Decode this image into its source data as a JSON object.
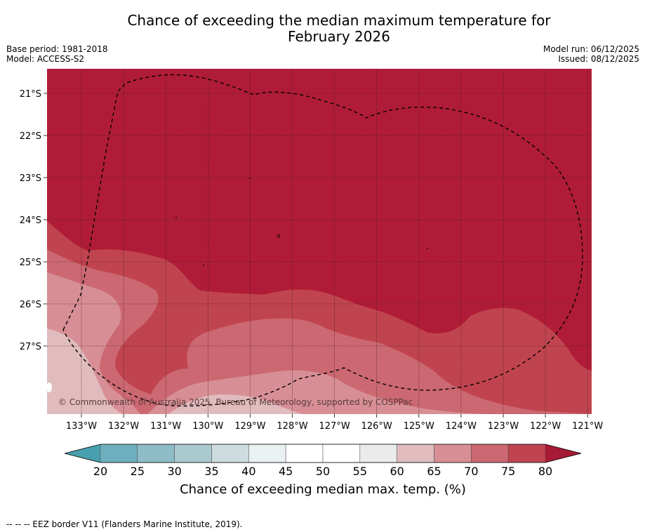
{
  "title": {
    "line1": "Chance of exceeding the median maximum temperature for",
    "line2": "February 2026"
  },
  "meta": {
    "base_period": "Base period: 1981-2018",
    "model": "Model: ACCESS-S2",
    "model_run": "Model run: 06/12/2025",
    "issued": "Issued: 08/12/2025"
  },
  "map": {
    "copyright": "© Commonwealth of Australia 2025, Bureau of Meteorology, supported by COSPPac",
    "lon_labels": [
      "133°W",
      "132°W",
      "131°W",
      "130°W",
      "129°W",
      "128°W",
      "127°W",
      "126°W",
      "125°W",
      "124°W",
      "123°W",
      "122°W",
      "121°W"
    ],
    "lat_labels": [
      "21°S",
      "22°S",
      "23°S",
      "24°S",
      "25°S",
      "26°S",
      "27°S"
    ],
    "colors": {
      "c80": "#b01c37",
      "c75": "#c0444f",
      "c70": "#cc6872",
      "c65": "#d78f95",
      "c60": "#e1bcbf"
    }
  },
  "colorbar": {
    "ticks": [
      "20",
      "25",
      "30",
      "35",
      "40",
      "45",
      "50",
      "55",
      "60",
      "65",
      "70",
      "75",
      "80"
    ],
    "colors": [
      "#6dafbe",
      "#8ebcc7",
      "#abcad0",
      "#cddcdf",
      "#eaf1f3",
      "#ffffff",
      "#ffffff",
      "#ebebeb",
      "#e1bcbf",
      "#d78f95",
      "#cc6872",
      "#c0444f"
    ],
    "low_color": "#48a0ae",
    "high_color": "#a61a35",
    "label": "Chance of exceeding median max. temp. (%)"
  },
  "footer": "--  --  -- EEZ border V11 (Flanders Marine Institute, 2019)."
}
